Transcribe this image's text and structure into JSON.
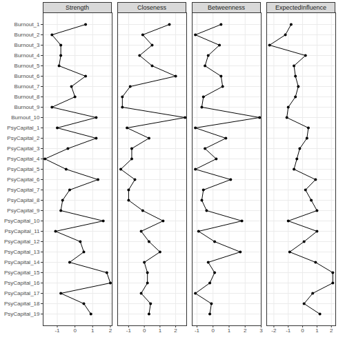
{
  "chart_data": [
    {
      "type": "line",
      "title": "Strength",
      "categories": [
        "Burnout_1",
        "Burnout_2",
        "Burnout_3",
        "Burnout_4",
        "Burnout_5",
        "Burnout_6",
        "Burnout_7",
        "Burnout_8",
        "Burnout_9",
        "Burnout_10",
        "PsyCapital_1",
        "PsyCapital_2",
        "PsyCapital_3",
        "PsyCapital_4",
        "PsyCapital_5",
        "PsyCapital_6",
        "PsyCapital_7",
        "PsyCapital_8",
        "PsyCapital_9",
        "PsyCapital_10",
        "PsyCapital_11",
        "PsyCapital_12",
        "PsyCapital_13",
        "PsyCapital_14",
        "PsyCapital_15",
        "PsyCapital_16",
        "PsyCapital_17",
        "PsyCapital_18",
        "PsyCapital_19"
      ],
      "values": [
        0.6,
        -1.3,
        -0.8,
        -0.8,
        -0.9,
        0.6,
        -0.2,
        0.0,
        -1.3,
        1.2,
        -1.0,
        1.2,
        -0.4,
        -1.7,
        -0.5,
        1.3,
        -0.3,
        -0.7,
        -0.8,
        1.6,
        -1.1,
        0.3,
        0.5,
        -0.3,
        1.8,
        2.0,
        -0.8,
        0.5,
        0.9
      ],
      "color": "#000000",
      "marker": "circle",
      "xlim": [
        -1.8,
        2.1
      ],
      "xticks": [
        -1,
        0,
        1,
        2
      ],
      "grid": true
    },
    {
      "type": "line",
      "title": "Closeness",
      "categories": [
        "Burnout_1",
        "Burnout_2",
        "Burnout_3",
        "Burnout_4",
        "Burnout_5",
        "Burnout_6",
        "Burnout_7",
        "Burnout_8",
        "Burnout_9",
        "Burnout_10",
        "PsyCapital_1",
        "PsyCapital_2",
        "PsyCapital_3",
        "PsyCapital_4",
        "PsyCapital_5",
        "PsyCapital_6",
        "PsyCapital_7",
        "PsyCapital_8",
        "PsyCapital_9",
        "PsyCapital_10",
        "PsyCapital_11",
        "PsyCapital_12",
        "PsyCapital_13",
        "PsyCapital_14",
        "PsyCapital_15",
        "PsyCapital_16",
        "PsyCapital_17",
        "PsyCapital_18",
        "PsyCapital_19"
      ],
      "values": [
        1.6,
        -0.1,
        0.5,
        -0.3,
        0.5,
        2.0,
        -0.9,
        -1.4,
        -1.4,
        2.6,
        -1.1,
        0.3,
        -0.8,
        -0.8,
        -1.5,
        -0.6,
        -1.0,
        -1.0,
        -0.1,
        1.2,
        -0.2,
        0.3,
        1.0,
        0.0,
        0.2,
        0.2,
        -0.2,
        0.4,
        0.3
      ],
      "color": "#000000",
      "marker": "circle",
      "xlim": [
        -1.7,
        2.7
      ],
      "xticks": [
        -1,
        0,
        1,
        2
      ],
      "grid": true,
      "tick_labels": "x"
    },
    {
      "type": "line",
      "title": "Betweenness",
      "categories": [
        "Burnout_1",
        "Burnout_2",
        "Burnout_3",
        "Burnout_4",
        "Burnout_5",
        "Burnout_6",
        "Burnout_7",
        "Burnout_8",
        "Burnout_9",
        "Burnout_10",
        "PsyCapital_1",
        "PsyCapital_2",
        "PsyCapital_3",
        "PsyCapital_4",
        "PsyCapital_5",
        "PsyCapital_6",
        "PsyCapital_7",
        "PsyCapital_8",
        "PsyCapital_9",
        "PsyCapital_10",
        "PsyCapital_11",
        "PsyCapital_12",
        "PsyCapital_13",
        "PsyCapital_14",
        "PsyCapital_15",
        "PsyCapital_16",
        "PsyCapital_17",
        "PsyCapital_18",
        "PsyCapital_19"
      ],
      "values": [
        0.5,
        -1.1,
        0.4,
        -0.3,
        -0.5,
        0.5,
        0.6,
        -0.6,
        -0.7,
        2.9,
        -1.1,
        0.8,
        -0.5,
        0.2,
        -1.1,
        1.1,
        -0.6,
        -0.7,
        -0.4,
        1.8,
        -0.9,
        0.1,
        1.7,
        -0.3,
        0.1,
        -0.2,
        -1.1,
        -0.1,
        -0.2
      ],
      "color": "#000000",
      "marker": "circle",
      "xlim": [
        -1.3,
        3.0
      ],
      "xticks": [
        -1,
        0,
        1,
        2,
        3
      ],
      "grid": true,
      "tick_labels": "x"
    },
    {
      "type": "line",
      "title": "ExpectedInfluence",
      "categories": [
        "Burnout_1",
        "Burnout_2",
        "Burnout_3",
        "Burnout_4",
        "Burnout_5",
        "Burnout_6",
        "Burnout_7",
        "Burnout_8",
        "Burnout_9",
        "Burnout_10",
        "PsyCapital_1",
        "PsyCapital_2",
        "PsyCapital_3",
        "PsyCapital_4",
        "PsyCapital_5",
        "PsyCapital_6",
        "PsyCapital_7",
        "PsyCapital_8",
        "PsyCapital_9",
        "PsyCapital_10",
        "PsyCapital_11",
        "PsyCapital_12",
        "PsyCapital_13",
        "PsyCapital_14",
        "PsyCapital_15",
        "PsyCapital_16",
        "PsyCapital_17",
        "PsyCapital_18",
        "PsyCapital_19"
      ],
      "values": [
        -0.8,
        -1.2,
        -2.3,
        0.2,
        -0.6,
        -0.5,
        -0.3,
        -0.5,
        -1.0,
        -1.1,
        0.4,
        0.3,
        -0.2,
        -0.4,
        -0.6,
        0.9,
        0.2,
        0.6,
        1.0,
        -1.0,
        1.0,
        0.1,
        -0.9,
        0.9,
        2.1,
        2.1,
        0.7,
        0.1,
        1.2
      ],
      "color": "#000000",
      "marker": "circle",
      "xlim": [
        -2.5,
        2.3
      ],
      "xticks": [
        -2,
        -1,
        0,
        1,
        2
      ],
      "grid": true,
      "tick_labels": "x"
    }
  ]
}
